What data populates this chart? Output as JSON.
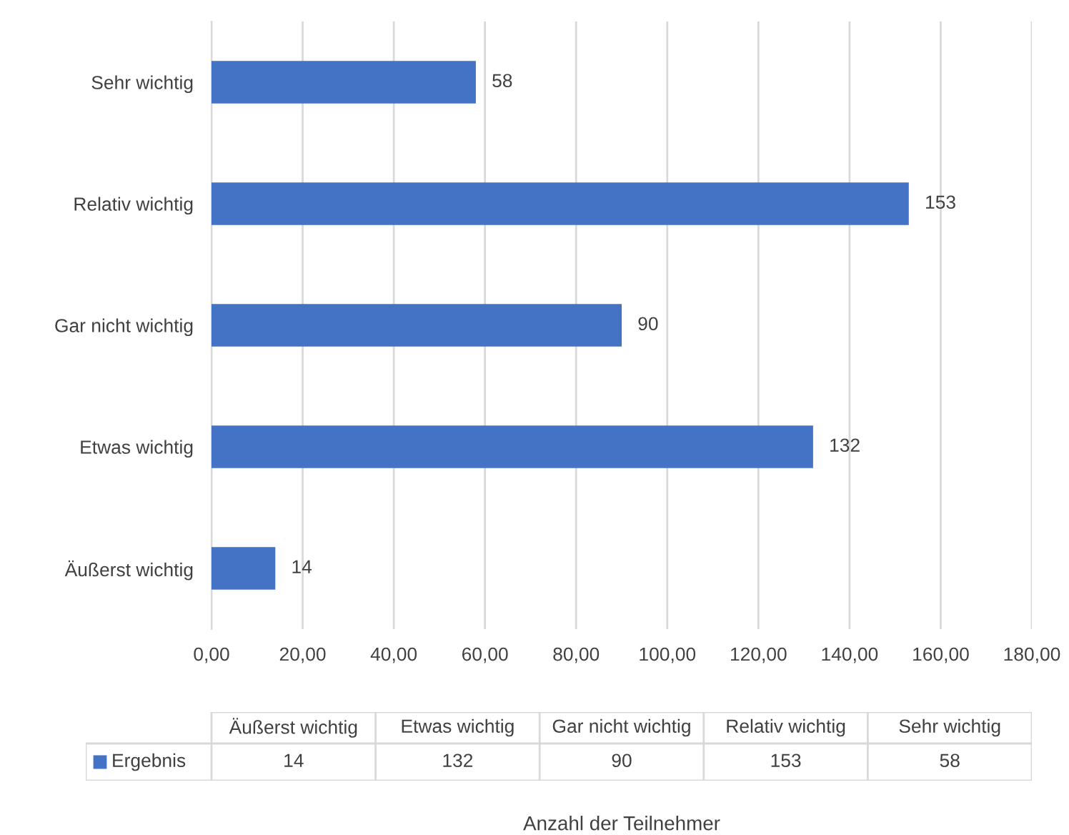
{
  "chart_data": {
    "type": "bar",
    "orientation": "horizontal",
    "annotations": [
      "Anzahl der Teilnehmer"
    ],
    "categories": [
      "Sehr wichtig",
      "Relativ wichtig",
      "Gar nicht wichtig",
      "Etwas wichtig",
      "Äußerst wichtig"
    ],
    "series": [
      {
        "name": "Ergebnis",
        "color": "#4472c4",
        "values": [
          58,
          153,
          90,
          132,
          14
        ],
        "value_labels": [
          "58",
          "153",
          "90",
          "132",
          "14"
        ]
      }
    ],
    "xlim": [
      0,
      180
    ],
    "xticks": [
      {
        "value": 0,
        "label": "0,00"
      },
      {
        "value": 20,
        "label": "20,00"
      },
      {
        "value": 40,
        "label": "40,00"
      },
      {
        "value": 60,
        "label": "60,00"
      },
      {
        "value": 80,
        "label": "80,00"
      },
      {
        "value": 100,
        "label": "100,00"
      },
      {
        "value": 120,
        "label": "120,00"
      },
      {
        "value": 140,
        "label": "140,00"
      },
      {
        "value": 160,
        "label": "160,00"
      },
      {
        "value": 180,
        "label": "180,00"
      }
    ],
    "grid": "x",
    "legend": "bottom"
  }
}
